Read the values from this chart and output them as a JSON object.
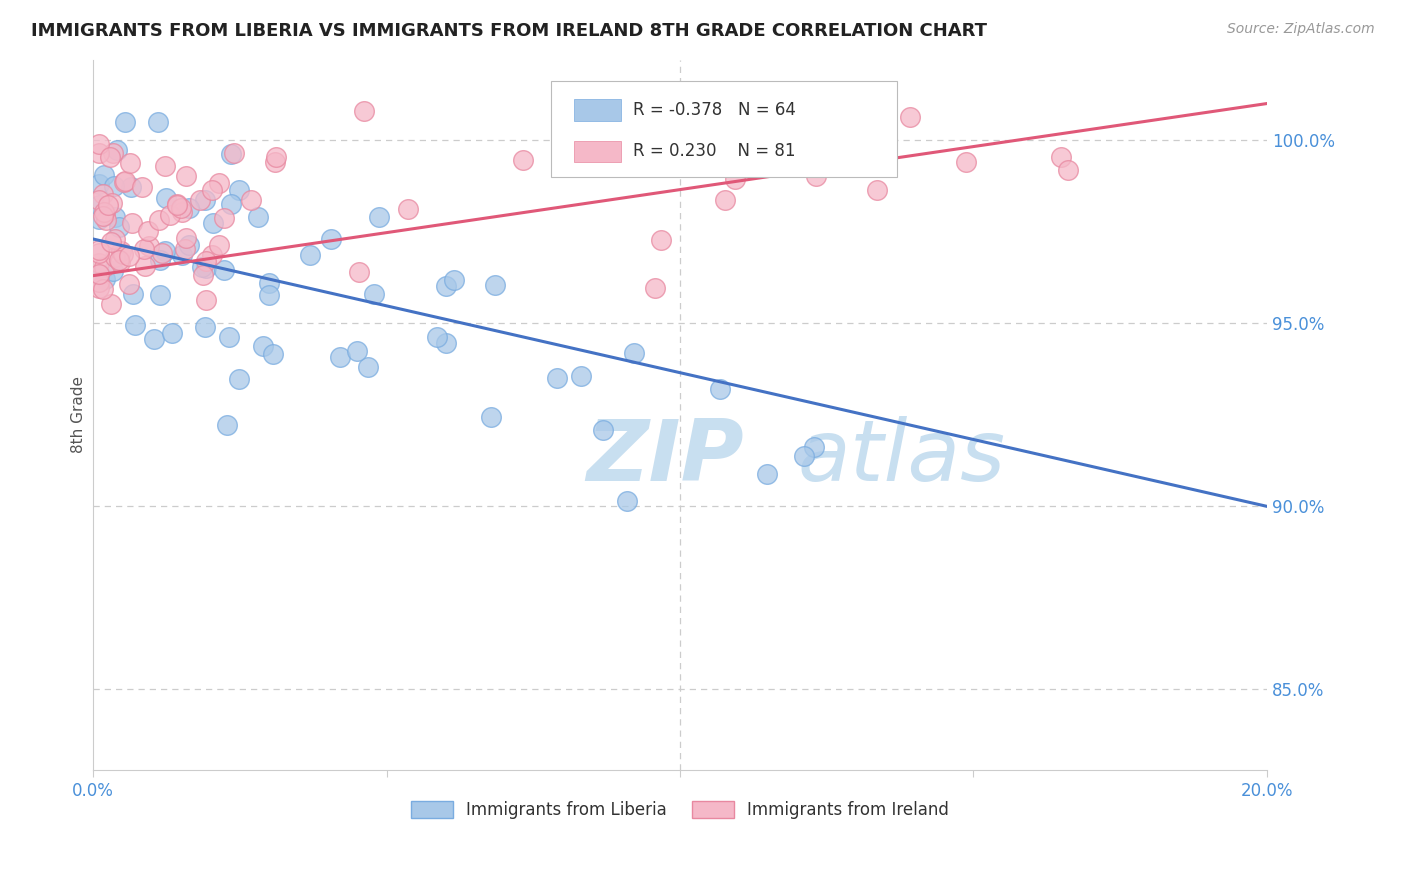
{
  "title": "IMMIGRANTS FROM LIBERIA VS IMMIGRANTS FROM IRELAND 8TH GRADE CORRELATION CHART",
  "source": "Source: ZipAtlas.com",
  "ylabel_left": "8th Grade",
  "xlim": [
    0.0,
    0.2
  ],
  "ylim": [
    0.828,
    1.022
  ],
  "x_ticks": [
    0.0,
    0.05,
    0.1,
    0.15,
    0.2
  ],
  "x_tick_labels": [
    "0.0%",
    "",
    "",
    "",
    "20.0%"
  ],
  "y_ticks_right": [
    0.85,
    0.9,
    0.95,
    1.0
  ],
  "y_tick_labels_right": [
    "85.0%",
    "90.0%",
    "95.0%",
    "100.0%"
  ],
  "legend_liberia": "Immigrants from Liberia",
  "legend_ireland": "Immigrants from Ireland",
  "r_liberia": -0.378,
  "n_liberia": 64,
  "r_ireland": 0.23,
  "n_ireland": 81,
  "color_liberia": "#a8c8e8",
  "color_liberia_edge": "#7aace0",
  "color_ireland": "#f5b8c8",
  "color_ireland_edge": "#e888a0",
  "line_color_liberia": "#4472c4",
  "line_color_ireland": "#e05878",
  "blue_line_x0": 0.0,
  "blue_line_y0": 0.973,
  "blue_line_x1": 0.2,
  "blue_line_y1": 0.9,
  "pink_line_x0": 0.0,
  "pink_line_y0": 0.963,
  "pink_line_x1": 0.2,
  "pink_line_y1": 1.01,
  "watermark_zip": "ZIP",
  "watermark_atlas": "atlas",
  "watermark_color": "#c8dff0",
  "background_color": "#ffffff",
  "grid_color": "#cccccc",
  "border_color": "#cccccc"
}
